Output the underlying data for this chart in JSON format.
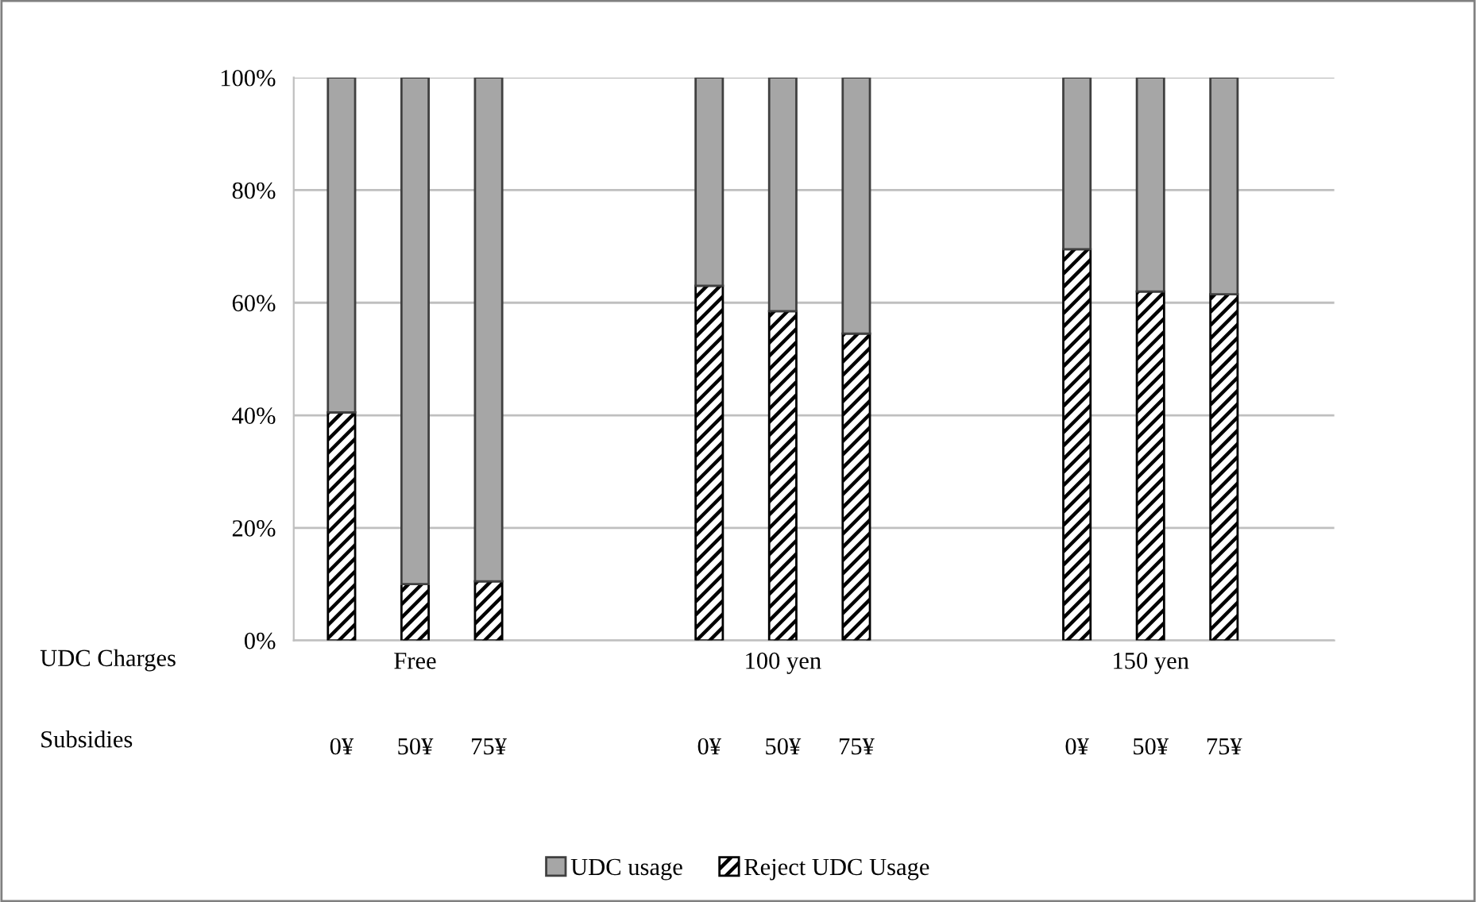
{
  "chart_data": {
    "type": "bar",
    "stacked": true,
    "categories": [
      "0¥",
      "50¥",
      "75¥",
      null,
      null,
      "0¥",
      "50¥",
      "75¥",
      null,
      null,
      "0¥",
      "50¥",
      "75¥"
    ],
    "series": [
      {
        "name": "Reject UDC Usage",
        "color": "#000000",
        "values": [
          40.5,
          10,
          10.5,
          null,
          null,
          63,
          58.5,
          54.5,
          null,
          null,
          69.5,
          62,
          61.5
        ]
      },
      {
        "name": "UDC usage",
        "color": "#a6a6a6",
        "values": [
          59.5,
          90,
          89.5,
          null,
          null,
          37,
          41.5,
          45.5,
          null,
          null,
          30.5,
          38,
          38.5
        ]
      }
    ],
    "ylim": [
      0,
      100
    ],
    "yticks": [
      {
        "value": 0,
        "label": "0%"
      },
      {
        "value": 20,
        "label": "20%"
      },
      {
        "value": 40,
        "label": "40%"
      },
      {
        "value": 60,
        "label": "60%"
      },
      {
        "value": 80,
        "label": "80%"
      },
      {
        "value": 100,
        "label": "100%"
      }
    ],
    "grid": "y",
    "legend": "bottom",
    "annotations": [
      "UDC Charges",
      "Subsidies",
      "Free",
      "100 yen",
      "150 yen"
    ]
  }
}
